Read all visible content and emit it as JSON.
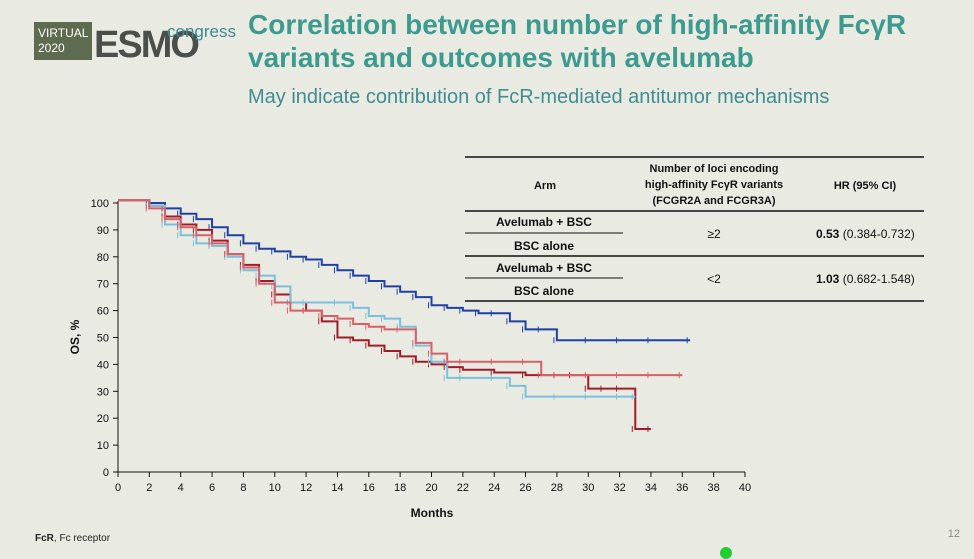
{
  "logo": {
    "virtual": "VIRTUAL",
    "year": "2020",
    "esmo": "ESMO",
    "congress": "congress"
  },
  "title_line1": "Correlation between number of high-affinity FcγR",
  "title_line2": "variants and outcomes with avelumab",
  "subtitle": "May indicate contribution of FcR-mediated antitumor mechanisms",
  "footnote": {
    "bold": "FcR",
    "text": ", Fc receptor"
  },
  "page_number": "12",
  "colors": {
    "avelumab_high": "#2040a8",
    "bsc_high": "#a01c28",
    "avelumab_low": "#7cc0dc",
    "bsc_low": "#d86068"
  },
  "table": {
    "headers": {
      "arm": "Arm",
      "loci": [
        "Number of loci encoding",
        "high-affinity FcγR variants",
        "(FCGR2A and FCGR3A)"
      ],
      "hr": "HR (95% CI)"
    },
    "groups": [
      {
        "arms": [
          "Avelumab + BSC",
          "BSC alone"
        ],
        "loci": "≥2",
        "hr_bold": "0.53",
        "hr_ci": " (0.384-0.732)"
      },
      {
        "arms": [
          "Avelumab + BSC",
          "BSC alone"
        ],
        "loci": "<2",
        "hr_bold": "1.03",
        "hr_ci": " (0.682-1.548)"
      }
    ]
  },
  "chart_data": {
    "type": "line",
    "xlabel": "Months",
    "ylabel": "OS, %",
    "xlim": [
      0,
      40
    ],
    "ylim": [
      0,
      100
    ],
    "xticks": [
      0,
      2,
      4,
      6,
      8,
      10,
      12,
      14,
      16,
      18,
      20,
      22,
      24,
      26,
      28,
      30,
      32,
      34,
      36,
      38,
      40
    ],
    "yticks": [
      0,
      10,
      20,
      30,
      40,
      50,
      60,
      70,
      80,
      90,
      100
    ],
    "series": [
      {
        "name": "Avelumab + BSC (≥2)",
        "color": "avelumab_high",
        "x": [
          0,
          2,
          3,
          4,
          5,
          6,
          7,
          8,
          9,
          10,
          11,
          12,
          13,
          14,
          15,
          16,
          17,
          18,
          19,
          20,
          21,
          22,
          23,
          24,
          25,
          26,
          27,
          28,
          30,
          32,
          34,
          36.5
        ],
        "y": [
          101,
          100,
          98,
          96,
          94,
          91,
          88,
          85,
          83,
          82,
          80,
          79,
          77,
          75,
          73,
          71,
          69,
          67,
          65,
          62,
          61,
          60,
          59,
          59,
          56,
          53,
          53,
          49,
          49,
          49,
          49,
          49
        ]
      },
      {
        "name": "BSC alone (≥2)",
        "color": "bsc_high",
        "x": [
          0,
          2,
          3,
          4,
          5,
          6,
          7,
          8,
          9,
          10,
          11,
          12,
          13,
          14,
          15,
          16,
          17,
          18,
          19,
          20,
          21,
          22,
          24,
          26,
          28,
          29,
          30,
          31,
          32,
          33,
          34
        ],
        "y": [
          101,
          99,
          95,
          92,
          90,
          86,
          81,
          77,
          71,
          66,
          63,
          60,
          56,
          50,
          49,
          47,
          45,
          43,
          41,
          40,
          39,
          38,
          37,
          36,
          36,
          36,
          31,
          31,
          31,
          16,
          16
        ]
      },
      {
        "name": "Avelumab + BSC (<2)",
        "color": "avelumab_low",
        "x": [
          0,
          2,
          3,
          4,
          5,
          6,
          7,
          8,
          9,
          10,
          11,
          12,
          14,
          15,
          16,
          17,
          18,
          19,
          20,
          21,
          22,
          24,
          25,
          26,
          28,
          30,
          32,
          33
        ],
        "y": [
          101,
          99,
          92,
          88,
          85,
          84,
          80,
          75,
          73,
          69,
          63,
          63,
          63,
          61,
          58,
          57,
          54,
          47,
          41,
          35,
          35,
          35,
          32,
          28,
          28,
          28,
          28,
          28
        ]
      },
      {
        "name": "BSC alone (<2)",
        "color": "bsc_low",
        "x": [
          0,
          2,
          3,
          4,
          5,
          6,
          7,
          8,
          9,
          10,
          11,
          12,
          13,
          14,
          15,
          16,
          17,
          18,
          19,
          20,
          21,
          22,
          24,
          26,
          27,
          28,
          30,
          32,
          34,
          36
        ],
        "y": [
          101,
          98,
          94,
          91,
          88,
          85,
          81,
          76,
          70,
          63,
          60,
          60,
          58,
          57,
          55,
          54,
          53,
          53,
          48,
          44,
          41,
          41,
          41,
          41,
          36,
          36,
          36,
          36,
          36,
          36
        ]
      }
    ]
  }
}
